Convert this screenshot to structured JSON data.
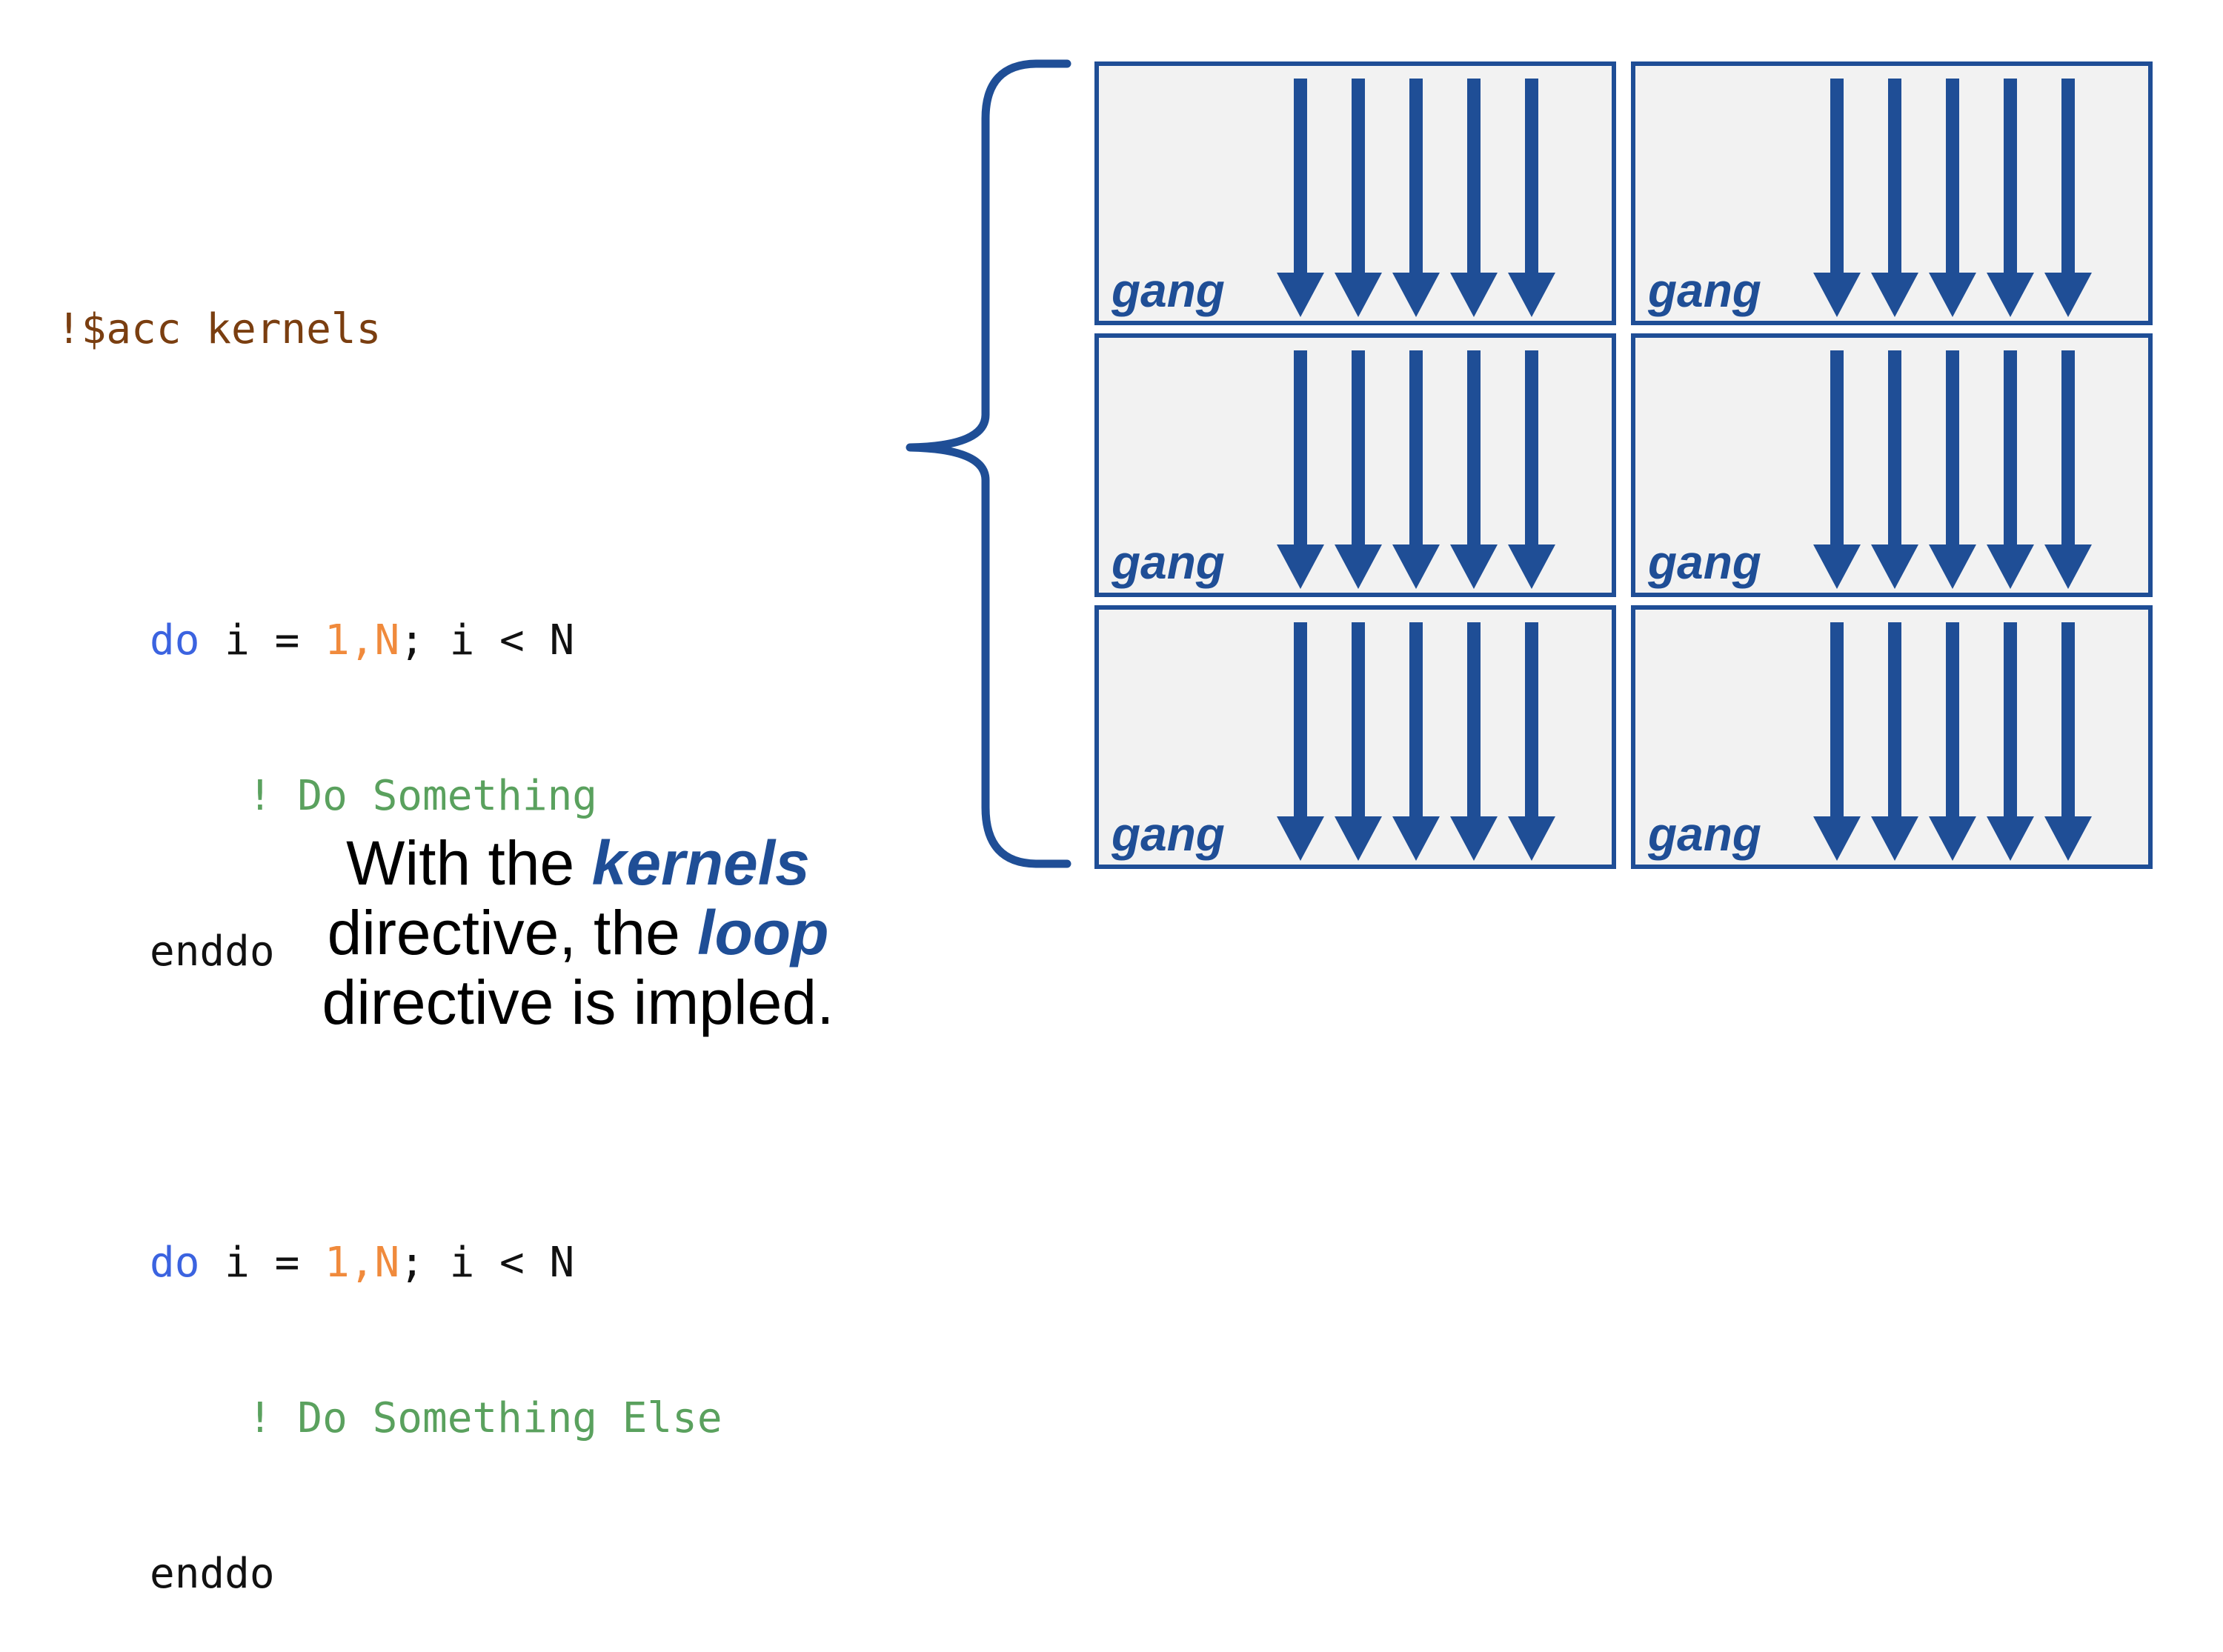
{
  "code": {
    "directive": "!$acc kernels",
    "loop1": {
      "do": "do",
      "var": " i = ",
      "range": "1,N",
      "cond": "; i < N",
      "comment": "! Do Something",
      "end": "enddo"
    },
    "loop2": {
      "do": "do",
      "var": " i = ",
      "range": "1,N",
      "cond": "; i < N",
      "comment": "! Do Something Else",
      "end": "enddo"
    }
  },
  "caption": {
    "line1_pre": "With the ",
    "line1_em": "kernels",
    "line2_pre": "directive, the ",
    "line2_em": "loop",
    "line3": "directive is impled."
  },
  "diagram": {
    "gangs": [
      {
        "label": "gang",
        "arrows": 5
      },
      {
        "label": "gang",
        "arrows": 5
      },
      {
        "label": "gang",
        "arrows": 5
      },
      {
        "label": "gang",
        "arrows": 5
      },
      {
        "label": "gang",
        "arrows": 5
      },
      {
        "label": "gang",
        "arrows": 5
      }
    ],
    "colors": {
      "accent": "#1f4e96",
      "box_fill": "#f2f2f2"
    }
  }
}
